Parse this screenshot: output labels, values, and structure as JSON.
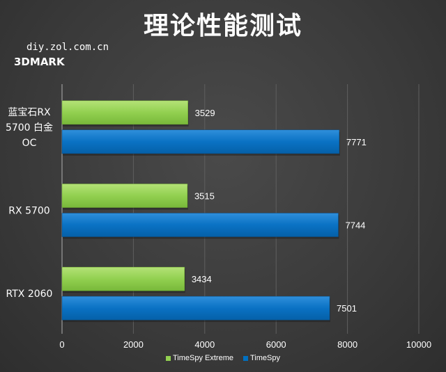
{
  "title": "理论性能测试",
  "watermark": "diy.zol.com.cn",
  "benchmark": "3DMARK",
  "chart_data": {
    "type": "bar",
    "orientation": "horizontal",
    "categories": [
      "蓝宝石RX 5700 白金 OC",
      "RX 5700",
      "RTX 2060"
    ],
    "category_lines": [
      [
        "蓝宝石RX",
        "5700 白金",
        "OC"
      ],
      [
        "RX 5700"
      ],
      [
        "RTX 2060"
      ]
    ],
    "series": [
      {
        "name": "TimeSpy Extreme",
        "color": "#92d050",
        "values": [
          3529,
          3515,
          3434
        ]
      },
      {
        "name": "TimeSpy",
        "color": "#0070c0",
        "values": [
          7771,
          7744,
          7501
        ]
      }
    ],
    "xlim": [
      0,
      10000
    ],
    "xticks": [
      "0",
      "2000",
      "4000",
      "6000",
      "8000",
      "10000"
    ],
    "grid": true,
    "legend_position": "bottom"
  }
}
